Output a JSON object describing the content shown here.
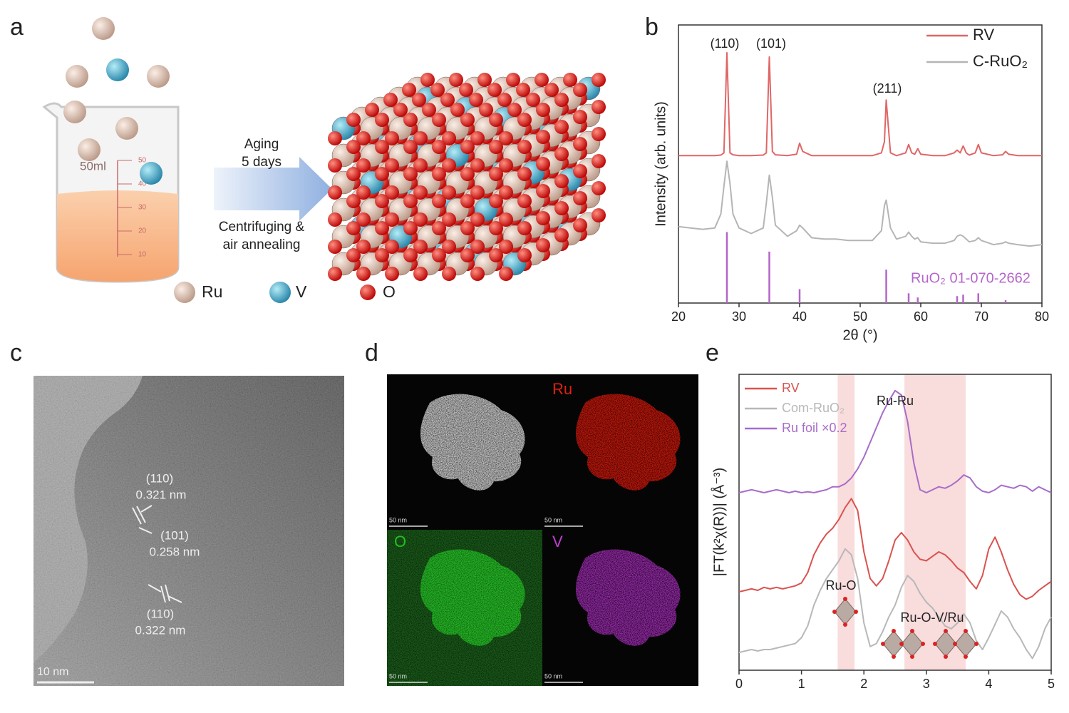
{
  "panels": {
    "a": {
      "label": "a",
      "beaker_volume": "50ml",
      "beaker_ticks": [
        50,
        40,
        30,
        20,
        10
      ],
      "arrow_above": [
        "Aging",
        "5 days"
      ],
      "arrow_below": [
        "Centrifuging &",
        "air annealing"
      ],
      "legend": [
        "Ru",
        "V",
        "O"
      ]
    },
    "c": {
      "label": "c",
      "annotations": [
        [
          "(110)",
          "0.321 nm"
        ],
        [
          "(101)",
          "0.258 nm"
        ],
        [
          "(110)",
          "0.322 nm"
        ]
      ],
      "scale_bar": "10 nm"
    },
    "d": {
      "label": "d",
      "maps": [
        "Ru",
        "O",
        "V"
      ],
      "scale_bars": [
        "50 nm",
        "50 nm",
        "50 nm",
        "50 nm"
      ]
    }
  },
  "chart_data": [
    {
      "type": "line",
      "panel_label": "b",
      "xlabel": "2θ (°)",
      "ylabel": "Intensity (arb. units)",
      "x": [
        20,
        22,
        24,
        26,
        27,
        27.5,
        28,
        28.5,
        29,
        30,
        32,
        34,
        34.5,
        35,
        35.5,
        36,
        38,
        39.5,
        40,
        40.5,
        42,
        44,
        46,
        48,
        50,
        52,
        53.5,
        54,
        54.3,
        55,
        56,
        57.5,
        58,
        58.5,
        59,
        59.5,
        60,
        62,
        64,
        65.5,
        66,
        66.5,
        67,
        67.5,
        68,
        69,
        69.5,
        70,
        72,
        73.5,
        74,
        74.5,
        76,
        78,
        80
      ],
      "xlim": [
        20,
        80
      ],
      "xticks": [
        20,
        30,
        40,
        50,
        60,
        70,
        80
      ],
      "ylim": [
        0,
        100
      ],
      "series": [
        {
          "name": "RV",
          "color": "#e06666",
          "values": [
            53,
            53,
            53,
            53,
            53.2,
            54,
            90,
            54,
            53.3,
            53,
            53,
            53.2,
            54,
            88.5,
            54.5,
            53.3,
            53,
            53.5,
            57.5,
            54.5,
            53,
            53,
            53,
            53,
            53,
            53,
            54,
            58,
            73,
            54,
            53,
            54,
            57,
            54,
            53.5,
            55.5,
            53.5,
            53,
            53,
            54,
            55,
            54,
            56.5,
            54,
            53.2,
            54,
            57,
            54,
            53,
            53.3,
            54.5,
            53.5,
            53,
            53,
            53
          ]
        },
        {
          "name": "C-RuO₂",
          "color": "#b5b5b5",
          "values": [
            27.5,
            27,
            26.5,
            27,
            32,
            42,
            51,
            43,
            32,
            27,
            25,
            27,
            36,
            46,
            38,
            28,
            24,
            26,
            28,
            27,
            23.5,
            23,
            23,
            22.5,
            22.5,
            22.5,
            26,
            35,
            37,
            27,
            23,
            24,
            25.5,
            24,
            23,
            23.5,
            22,
            21.5,
            21.5,
            22.5,
            24,
            24.5,
            24,
            23,
            22,
            22.5,
            23.5,
            22.5,
            21,
            21.5,
            22,
            21.5,
            21,
            20.5,
            21
          ]
        }
      ],
      "reference": {
        "name": "RuO₂ 01-070-2662",
        "color": "#b565c9",
        "x": [
          28,
          35,
          40,
          54.3,
          58,
          59.5,
          66,
          67,
          69.5,
          74
        ],
        "values": [
          25.5,
          18.5,
          5,
          12,
          3.5,
          2,
          2.5,
          3,
          3.5,
          1
        ]
      },
      "annotations": [
        "(110)",
        "(101)",
        "(211)"
      ],
      "legend": "upper right"
    },
    {
      "type": "line",
      "panel_label": "e",
      "ylabel": "|FT(k²χ(R))| (Å⁻³)",
      "x": [
        0,
        0.1,
        0.2,
        0.3,
        0.4,
        0.5,
        0.6,
        0.7,
        0.8,
        0.9,
        1,
        1.1,
        1.2,
        1.3,
        1.4,
        1.5,
        1.6,
        1.7,
        1.8,
        1.9,
        2,
        2.1,
        2.2,
        2.3,
        2.4,
        2.5,
        2.6,
        2.7,
        2.8,
        2.9,
        3,
        3.1,
        3.2,
        3.3,
        3.4,
        3.5,
        3.6,
        3.7,
        3.8,
        3.9,
        4,
        4.1,
        4.2,
        4.3,
        4.4,
        4.5,
        4.6,
        4.7,
        4.8,
        4.9,
        5
      ],
      "xlim": [
        0,
        5
      ],
      "xticks": [
        0,
        1,
        2,
        3,
        4,
        5
      ],
      "ylim": [
        0,
        100
      ],
      "series": [
        {
          "name": "RV",
          "color": "#d9534f",
          "values": [
            26.5,
            27,
            27.5,
            27,
            28,
            27.5,
            28,
            27.5,
            28,
            28.5,
            29.5,
            33,
            39,
            43,
            46,
            48,
            51,
            55,
            58,
            54,
            40,
            31,
            28.5,
            31,
            37,
            44,
            46.5,
            44,
            40,
            37.5,
            37,
            38.5,
            40,
            39,
            37,
            34.5,
            33,
            30,
            27.5,
            32,
            41,
            45,
            40,
            34,
            29,
            25.5,
            24,
            25,
            27,
            28.5,
            30
          ]
        },
        {
          "name": "Com-RuO₂",
          "color": "#b8b8b8",
          "values": [
            6,
            6.5,
            7,
            6.5,
            7,
            7,
            7.5,
            8,
            8.5,
            9,
            11,
            15,
            22,
            27,
            31,
            34,
            37,
            41,
            39,
            31,
            16,
            8,
            9,
            13,
            18,
            22,
            28,
            32,
            30,
            26,
            23,
            21,
            18,
            15,
            14,
            16,
            19,
            16,
            10,
            7,
            11,
            15.5,
            20,
            18,
            14,
            11,
            7,
            4,
            8,
            14,
            18
          ]
        },
        {
          "name": "Ru foil ×0.2",
          "color": "#a86cc9",
          "values": [
            60,
            60.5,
            61,
            60.5,
            60,
            60.5,
            61,
            60.5,
            60,
            60.5,
            60,
            60.3,
            60,
            60.5,
            61,
            62,
            62,
            63,
            65,
            68,
            72,
            77,
            82,
            87,
            91,
            94.5,
            93,
            84,
            70,
            61,
            60,
            61,
            62,
            61.5,
            62.5,
            64,
            66,
            65,
            62,
            60.5,
            60,
            61,
            62.5,
            62,
            61.5,
            62.5,
            62,
            60.5,
            62,
            61,
            60
          ]
        }
      ],
      "bands": [
        [
          1.58,
          1.85
        ],
        [
          2.65,
          3.63
        ]
      ],
      "band_color": "#f9dcdc",
      "annotations": [
        "Ru-Ru",
        "Ru-O",
        "Ru-O-V/Ru"
      ],
      "legend": "upper left"
    }
  ]
}
